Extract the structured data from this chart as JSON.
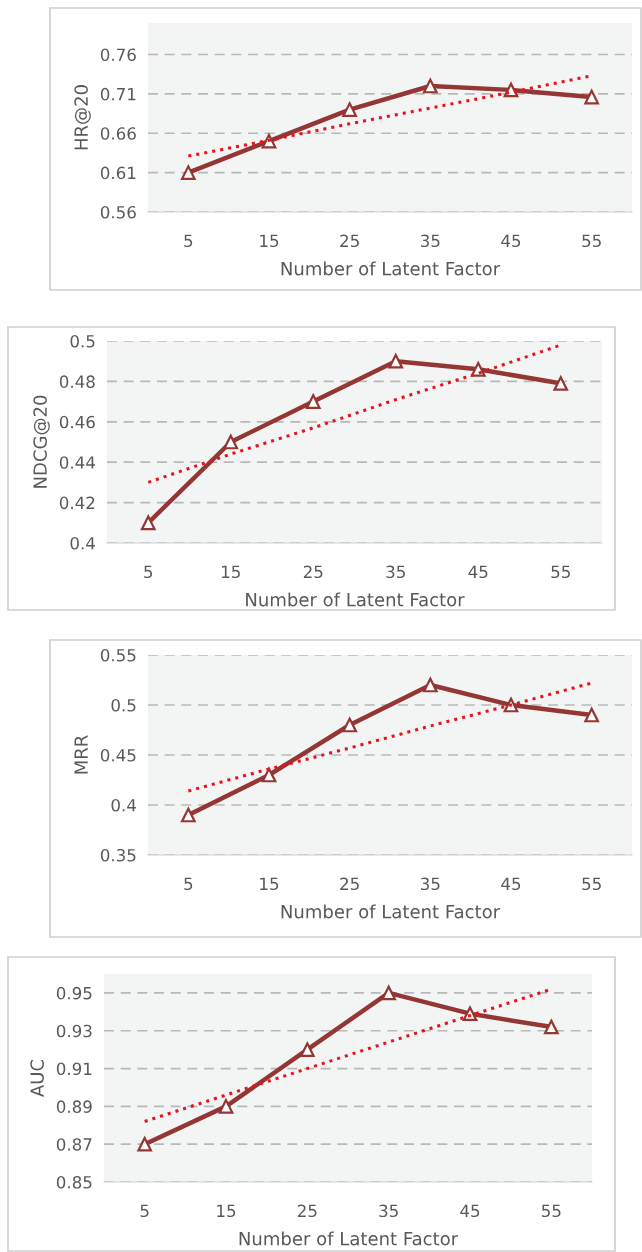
{
  "chart_data": [
    {
      "type": "line",
      "xlabel": "Number of Latent Factor",
      "ylabel": "HR@20",
      "categories": [
        "5",
        "15",
        "25",
        "35",
        "45",
        "55"
      ],
      "ylim": [
        0.56,
        0.8
      ],
      "yticks": [
        0.56,
        0.61,
        0.66,
        0.71,
        0.76
      ],
      "grid": "y",
      "series": [
        {
          "color": "#943634",
          "values": [
            0.61,
            0.65,
            0.69,
            0.72,
            0.715,
            0.706
          ],
          "marker": "triangle",
          "line_style": "solid"
        },
        {
          "color": "#e8131e",
          "values": [
            0.631,
            0.651,
            0.672,
            0.692,
            0.712,
            0.733
          ],
          "marker": "none",
          "line_style": "dotted"
        }
      ]
    },
    {
      "type": "line",
      "xlabel": "Number of Latent Factor",
      "ylabel": "NDCG@20",
      "categories": [
        "5",
        "15",
        "25",
        "35",
        "45",
        "55"
      ],
      "ylim": [
        0.4,
        0.5
      ],
      "yticks": [
        0.4,
        0.42,
        0.44,
        0.46,
        0.48,
        0.5
      ],
      "grid": "y",
      "series": [
        {
          "color": "#943634",
          "values": [
            0.41,
            0.45,
            0.47,
            0.49,
            0.486,
            0.479
          ],
          "marker": "triangle",
          "line_style": "solid"
        },
        {
          "color": "#e8131e",
          "values": [
            0.43,
            0.444,
            0.457,
            0.471,
            0.484,
            0.498
          ],
          "marker": "none",
          "line_style": "dotted"
        }
      ]
    },
    {
      "type": "line",
      "xlabel": "Number of Latent Factor",
      "ylabel": "MRR",
      "categories": [
        "5",
        "15",
        "25",
        "35",
        "45",
        "55"
      ],
      "ylim": [
        0.35,
        0.55
      ],
      "yticks": [
        0.35,
        0.4,
        0.45,
        0.5,
        0.55
      ],
      "grid": "y",
      "series": [
        {
          "color": "#943634",
          "values": [
            0.39,
            0.43,
            0.48,
            0.52,
            0.5,
            0.49
          ],
          "marker": "triangle",
          "line_style": "solid"
        },
        {
          "color": "#e8131e",
          "values": [
            0.414,
            0.436,
            0.457,
            0.479,
            0.5,
            0.522
          ],
          "marker": "none",
          "line_style": "dotted"
        }
      ]
    },
    {
      "type": "line",
      "xlabel": "Number of Latent Factor",
      "ylabel": "AUC",
      "categories": [
        "5",
        "15",
        "25",
        "35",
        "45",
        "55"
      ],
      "ylim": [
        0.85,
        0.96
      ],
      "yticks": [
        0.85,
        0.87,
        0.89,
        0.91,
        0.93,
        0.95
      ],
      "grid": "y",
      "series": [
        {
          "color": "#943634",
          "values": [
            0.87,
            0.89,
            0.92,
            0.95,
            0.939,
            0.932
          ],
          "marker": "triangle",
          "line_style": "solid"
        },
        {
          "color": "#e8131e",
          "values": [
            0.882,
            0.896,
            0.91,
            0.924,
            0.938,
            0.952
          ],
          "marker": "none",
          "line_style": "dotted"
        }
      ]
    }
  ]
}
